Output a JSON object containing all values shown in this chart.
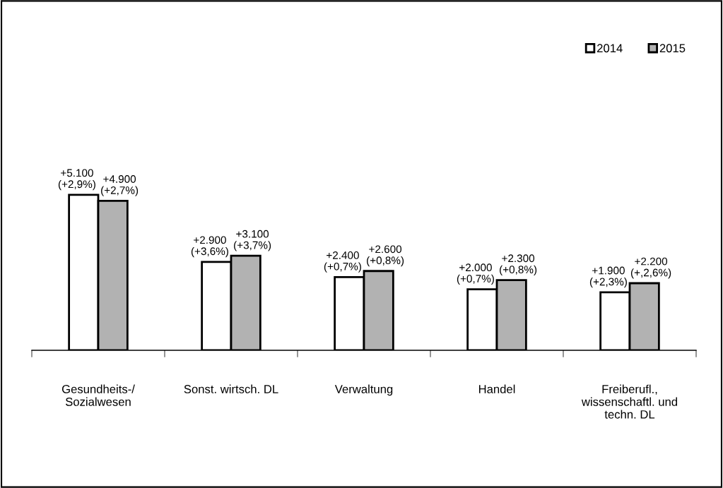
{
  "chart_data": {
    "type": "bar",
    "categories": [
      "Gesundheits-/\nSozialwesen",
      "Sonst. wirtsch. DL",
      "Verwaltung",
      "Handel",
      "Freiberufl.,\nwissenschaftl. und\ntechn. DL"
    ],
    "series": [
      {
        "name": "2014",
        "color": "#ffffff",
        "values": [
          5100,
          2900,
          2400,
          2000,
          1900
        ],
        "value_labels": [
          "+5.100\n(+2,9%)",
          "+2.900\n(+3,6%)",
          "+2.400\n(+0,7%)",
          "+2.000\n(+0,7%)",
          "+1.900\n(+2,3%)"
        ]
      },
      {
        "name": "2015",
        "color": "#b2b2b2",
        "values": [
          4900,
          3100,
          2600,
          2300,
          2200
        ],
        "value_labels": [
          "+4.900\n(+2,7%)",
          "+3.100\n(+3,7%)",
          "+2.600\n(+0,8%)",
          "+2.300\n(+0,8%)",
          "+2.200\n(+,2,6%)"
        ]
      }
    ],
    "legend": "top right",
    "grid": false,
    "tick_labels": "x"
  }
}
